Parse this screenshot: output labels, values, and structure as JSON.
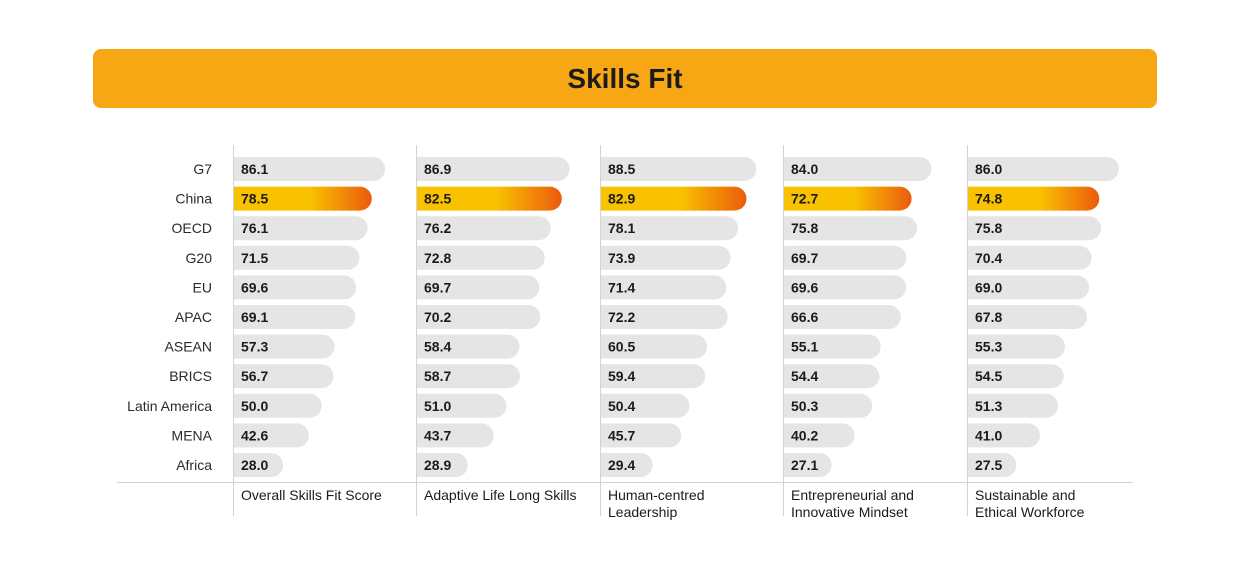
{
  "title": "Skills Fit",
  "colors": {
    "title_bar": "#f7a713",
    "bar": "#e6e5e6",
    "highlight_start": "#f8c200",
    "highlight_end": "#ec5a0d",
    "grid": "#d3d3d3"
  },
  "chart_data": {
    "type": "bar",
    "orientation": "horizontal",
    "title": "Skills Fit",
    "categories": [
      "G7",
      "China",
      "OECD",
      "G20",
      "EU",
      "APAC",
      "ASEAN",
      "BRICS",
      "Latin America",
      "MENA",
      "Africa"
    ],
    "highlight_category": "China",
    "xlim": [
      0,
      100
    ],
    "series": [
      {
        "name_lines": [
          "Overall Skills Fit Score"
        ],
        "values": [
          86.1,
          78.5,
          76.1,
          71.5,
          69.6,
          69.1,
          57.3,
          56.7,
          50.0,
          42.6,
          28.0
        ],
        "labels": [
          "86.1",
          "78.5",
          "76.1",
          "71.5",
          "69.6",
          "69.1",
          "57.3",
          "56.7",
          "50.0",
          "42.6",
          "28.0"
        ]
      },
      {
        "name_lines": [
          "Adaptive Life Long Skills"
        ],
        "values": [
          86.9,
          82.5,
          76.2,
          72.8,
          69.7,
          70.2,
          58.4,
          58.7,
          51.0,
          43.7,
          28.9
        ],
        "labels": [
          "86.9",
          "82.5",
          "76.2",
          "72.8",
          "69.7",
          "70.2",
          "58.4",
          "58.7",
          "51.0",
          "43.7",
          "28.9"
        ]
      },
      {
        "name_lines": [
          "Human-centred",
          "Leadership"
        ],
        "values": [
          88.5,
          82.9,
          78.1,
          73.9,
          71.4,
          72.2,
          60.5,
          59.4,
          50.4,
          45.7,
          29.4
        ],
        "labels": [
          "88.5",
          "82.9",
          "78.1",
          "73.9",
          "71.4",
          "72.2",
          "60.5",
          "59.4",
          "50.4",
          "45.7",
          "29.4"
        ]
      },
      {
        "name_lines": [
          "Entrepreneurial and",
          "Innovative Mindset"
        ],
        "values": [
          84.0,
          72.7,
          75.8,
          69.7,
          69.6,
          66.6,
          55.1,
          54.4,
          50.3,
          40.2,
          27.1
        ],
        "labels": [
          "84.0",
          "72.7",
          "75.8",
          "69.7",
          "69.6",
          "66.6",
          "55.1",
          "54.4",
          "50.3",
          "40.2",
          "27.1"
        ]
      },
      {
        "name_lines": [
          "Sustainable and",
          "Ethical Workforce"
        ],
        "values": [
          86.0,
          74.8,
          75.8,
          70.4,
          69.0,
          67.8,
          55.3,
          54.5,
          51.3,
          41.0,
          27.5
        ],
        "labels": [
          "86.0",
          "74.8",
          "75.8",
          "70.4",
          "69.0",
          "67.8",
          "55.3",
          "54.5",
          "51.3",
          "41.0",
          "27.5"
        ]
      }
    ]
  }
}
